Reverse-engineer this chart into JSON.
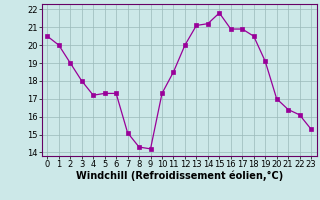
{
  "x": [
    0,
    1,
    2,
    3,
    4,
    5,
    6,
    7,
    8,
    9,
    10,
    11,
    12,
    13,
    14,
    15,
    16,
    17,
    18,
    19,
    20,
    21,
    22,
    23
  ],
  "y": [
    20.5,
    20.0,
    19.0,
    18.0,
    17.2,
    17.3,
    17.3,
    15.1,
    14.3,
    14.2,
    17.3,
    18.5,
    20.0,
    21.1,
    21.2,
    21.8,
    20.9,
    20.9,
    20.5,
    19.1,
    17.0,
    16.4,
    16.1,
    15.3
  ],
  "xlim": [
    -0.5,
    23.5
  ],
  "ylim": [
    13.8,
    22.3
  ],
  "yticks": [
    14,
    15,
    16,
    17,
    18,
    19,
    20,
    21,
    22
  ],
  "xticks": [
    0,
    1,
    2,
    3,
    4,
    5,
    6,
    7,
    8,
    9,
    10,
    11,
    12,
    13,
    14,
    15,
    16,
    17,
    18,
    19,
    20,
    21,
    22,
    23
  ],
  "xlabel": "Windchill (Refroidissement éolien,°C)",
  "line_color": "#990099",
  "marker_color": "#990099",
  "bg_color": "#cce8e8",
  "grid_color": "#9bbaba",
  "tick_fontsize": 6,
  "xlabel_fontsize": 7
}
